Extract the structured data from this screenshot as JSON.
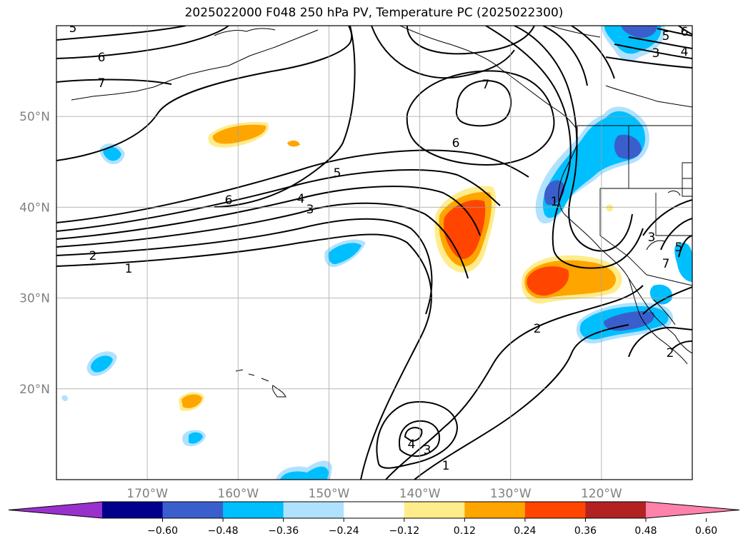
{
  "title": "2025022000 F048 250 hPa PV, Temperature PC (2025022300)",
  "chart_data": {
    "type": "map",
    "lat_ticks": [
      {
        "lat": 50,
        "label": "50°N"
      },
      {
        "lat": 40,
        "label": "40°N"
      },
      {
        "lat": 30,
        "label": "30°N"
      },
      {
        "lat": 20,
        "label": "20°N"
      }
    ],
    "lon_ticks": [
      {
        "lon": -170,
        "label": "170°W"
      },
      {
        "lon": -160,
        "label": "160°W"
      },
      {
        "lon": -150,
        "label": "150°W"
      },
      {
        "lon": -140,
        "label": "140°W"
      },
      {
        "lon": -130,
        "label": "130°W"
      },
      {
        "lon": -120,
        "label": "120°W"
      }
    ],
    "grid": true,
    "colorbar": {
      "ticks": [
        "−0.60",
        "−0.48",
        "−0.36",
        "−0.24",
        "−0.12",
        "0.12",
        "0.24",
        "0.36",
        "0.48",
        "0.60"
      ],
      "colors": [
        "#9932cc",
        "#00008b",
        "#3a5fcd",
        "#00bfff",
        "#b0e2ff",
        "#ffffff",
        "#ffec8b",
        "#ffa500",
        "#ff4500",
        "#b22222",
        "#ff82ab"
      ],
      "extend": "both"
    },
    "pv_contour_labels": [
      "1",
      "2",
      "3",
      "4",
      "5",
      "6",
      "7"
    ]
  }
}
